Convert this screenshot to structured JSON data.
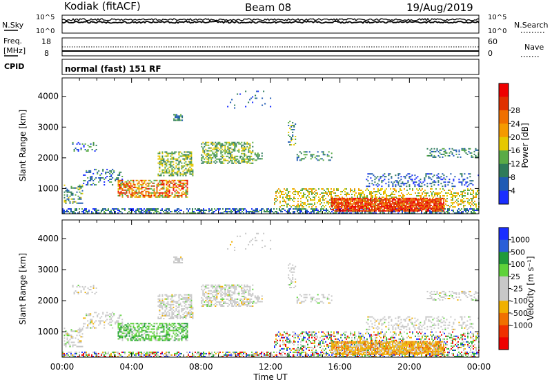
{
  "header": {
    "station": "Kodiak (fitACF)",
    "beam": "Beam 08",
    "date": "19/Aug/2019"
  },
  "aux_panels": {
    "nsky_label": "N.Sky",
    "nsearch_label": "N.Search",
    "nsky_ticks": [
      "10^5",
      "10^0"
    ],
    "freq_label_1": "Freq.",
    "freq_label_2": "[MHz]",
    "freq_ticks": [
      "18",
      "8"
    ],
    "nave_label": "Nave",
    "nave_ticks": [
      "60",
      "0"
    ],
    "cpid_label": "CPID",
    "cpid_text": "normal (fast) 151 RF"
  },
  "chart_data": [
    {
      "type": "heatmap",
      "variable": "Power",
      "ylabel": "Slant Range [km]",
      "xlabel": "Time UT",
      "y_ticks": [
        "1000",
        "2000",
        "3000",
        "4000"
      ],
      "ylim": [
        180,
        4600
      ],
      "xlim": [
        0,
        24
      ],
      "colorbar_label": "Power [dB]",
      "colorbar_ticks": [
        "4",
        "8",
        "12",
        "16",
        "20",
        "24",
        "28"
      ],
      "colorbar_colors": [
        "#1a2eff",
        "#1e5ab4",
        "#2e7b5a",
        "#5aab46",
        "#e6c800",
        "#f59a00",
        "#f07000",
        "#e03000",
        "#ee0000"
      ]
    },
    {
      "type": "heatmap",
      "variable": "Velocity",
      "ylabel": "Slant Range [km]",
      "xlabel": "Time UT",
      "y_ticks": [
        "1000",
        "2000",
        "3000",
        "4000"
      ],
      "ylim": [
        180,
        4600
      ],
      "xlim": [
        0,
        24
      ],
      "colorbar_label": "Velocity [m s⁻¹]",
      "colorbar_ticks": [
        "1000",
        "500",
        "100",
        "25",
        "-25",
        "-100",
        "-500",
        "-1000"
      ],
      "colorbar_colors": [
        "#1a2eff",
        "#2a5ed8",
        "#1f9a3a",
        "#5ed23a",
        "#c8c8c8",
        "#c8c8c8",
        "#f0b000",
        "#f07000",
        "#f03000",
        "#ee0000"
      ]
    }
  ],
  "x_ticks": [
    "00:00",
    "04:00",
    "08:00",
    "12:00",
    "16:00",
    "20:00",
    "00:00"
  ]
}
